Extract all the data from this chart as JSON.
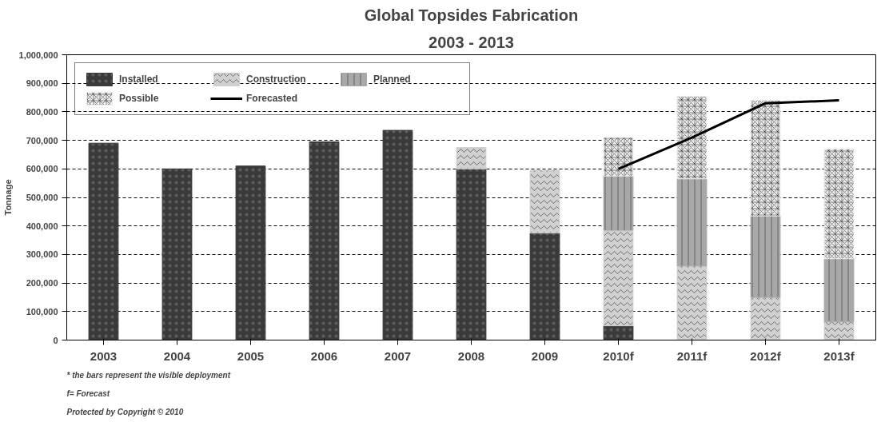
{
  "chart_data": {
    "type": "bar",
    "stacked": true,
    "title": "Global Topsides Fabrication",
    "subtitle": "2003 - 2013",
    "ylabel": "Tonnage",
    "categories": [
      "2003",
      "2004",
      "2005",
      "2006",
      "2007",
      "2008",
      "2009",
      "2010f",
      "2011f",
      "2012f",
      "2013f"
    ],
    "series": [
      {
        "name": "Installed",
        "color": "#3a3a3a",
        "values": [
          690000,
          600000,
          610000,
          695000,
          735000,
          600000,
          375000,
          50000,
          0,
          0,
          0
        ]
      },
      {
        "name": "Construction",
        "color": "#d0d0d0",
        "values": [
          0,
          0,
          0,
          0,
          0,
          75000,
          220000,
          335000,
          260000,
          150000,
          65000
        ]
      },
      {
        "name": "Planned",
        "color": "#a8a8a8",
        "values": [
          0,
          0,
          0,
          0,
          0,
          0,
          0,
          190000,
          305000,
          285000,
          220000
        ]
      },
      {
        "name": "Possible",
        "color": "#ececec",
        "values": [
          0,
          0,
          0,
          0,
          0,
          0,
          0,
          135000,
          290000,
          405000,
          385000
        ]
      },
      {
        "name": "Forecasted",
        "type": "line",
        "color": "#000000",
        "values": [
          null,
          null,
          null,
          null,
          null,
          null,
          null,
          600000,
          710000,
          830000,
          840000
        ]
      }
    ],
    "ylim": [
      0,
      1000000
    ],
    "yticks": [
      {
        "value": 0,
        "label": "0"
      },
      {
        "value": 100000,
        "label": "100,000"
      },
      {
        "value": 200000,
        "label": "200,000"
      },
      {
        "value": 300000,
        "label": "300,000"
      },
      {
        "value": 400000,
        "label": "400,000"
      },
      {
        "value": 500000,
        "label": "500,000"
      },
      {
        "value": 600000,
        "label": "600,000"
      },
      {
        "value": 700000,
        "label": "700,000"
      },
      {
        "value": 800000,
        "label": "800,000"
      },
      {
        "value": 900000,
        "label": "900,000"
      },
      {
        "value": 1000000,
        "label": "1,000,000"
      }
    ],
    "grid": "y",
    "legend": "top left",
    "annotations": [
      "* the bars represent the visible deployment",
      "f= Forecast",
      "Protected by Copyright © 2010"
    ]
  }
}
